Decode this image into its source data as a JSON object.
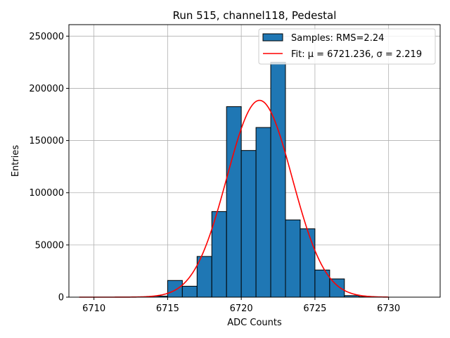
{
  "chart_data": {
    "type": "bar",
    "title": "Run 515, channel118, Pedestal",
    "xlabel": "ADC Counts",
    "ylabel": "Entries",
    "xlim": [
      6708.3,
      6733.5
    ],
    "ylim": [
      0,
      261000
    ],
    "xticks": [
      6710,
      6715,
      6720,
      6725,
      6730
    ],
    "yticks": [
      0,
      50000,
      100000,
      150000,
      200000,
      250000
    ],
    "grid": true,
    "legend_position": "top-right",
    "histogram": {
      "name": "Samples: RMS=2.24",
      "color": "#1f77b4",
      "bin_edges": [
        6713,
        6714,
        6715,
        6716,
        6717,
        6718,
        6719,
        6720,
        6721,
        6722,
        6723,
        6724,
        6725,
        6726,
        6727,
        6728,
        6729
      ],
      "values": [
        0,
        1000,
        16000,
        10500,
        39000,
        82000,
        182500,
        140500,
        162500,
        225000,
        74000,
        65500,
        26000,
        17500,
        1500,
        500
      ]
    },
    "fit": {
      "name": "Fit: μ = 6721.236, σ = 2.219",
      "color": "#ff0000",
      "mu": 6721.236,
      "sigma": 2.219,
      "amplitude": 188500,
      "x_range": [
        6709,
        6730
      ]
    }
  }
}
